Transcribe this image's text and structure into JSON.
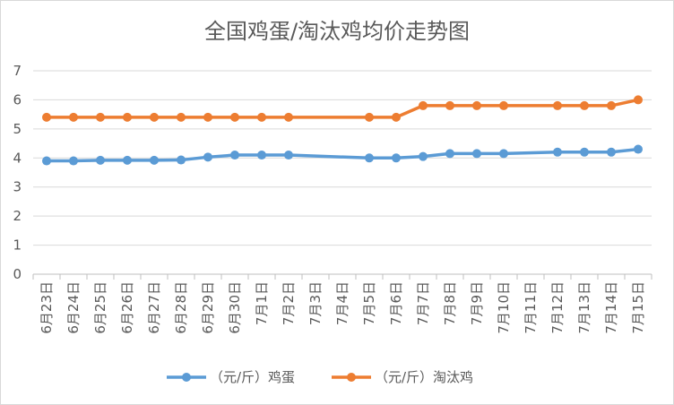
{
  "chart_data": {
    "type": "line",
    "title": "全国鸡蛋/淘汰鸡均价走势图",
    "categories": [
      "6月23日",
      "6月24日",
      "6月25日",
      "6月26日",
      "6月27日",
      "6月28日",
      "6月29日",
      "6月30日",
      "7月1日",
      "7月2日",
      "7月3日",
      "7月4日",
      "7月5日",
      "7月6日",
      "7月7日",
      "7月8日",
      "7月9日",
      "7月10日",
      "7月11日",
      "7月12日",
      "7月13日",
      "7月14日",
      "7月15日"
    ],
    "ylim": [
      0,
      7
    ],
    "yticks": [
      "0",
      "1",
      "2",
      "3",
      "4",
      "5",
      "6",
      "7"
    ],
    "grid": true,
    "legend_position": "bottom",
    "series": [
      {
        "name": "（元/斤）鸡蛋",
        "color": "#5b9bd5",
        "values": [
          3.9,
          3.9,
          3.92,
          3.92,
          3.92,
          3.93,
          4.03,
          4.1,
          4.1,
          4.1,
          null,
          null,
          4.0,
          4.0,
          4.05,
          4.15,
          4.15,
          4.15,
          null,
          4.2,
          4.2,
          4.2,
          4.3
        ]
      },
      {
        "name": "（元/斤）淘汰鸡",
        "color": "#ed7d31",
        "values": [
          5.4,
          5.4,
          5.4,
          5.4,
          5.4,
          5.4,
          5.4,
          5.4,
          5.4,
          5.4,
          null,
          null,
          5.4,
          5.4,
          5.8,
          5.8,
          5.8,
          5.8,
          null,
          5.8,
          5.8,
          5.8,
          6.0
        ]
      }
    ]
  }
}
